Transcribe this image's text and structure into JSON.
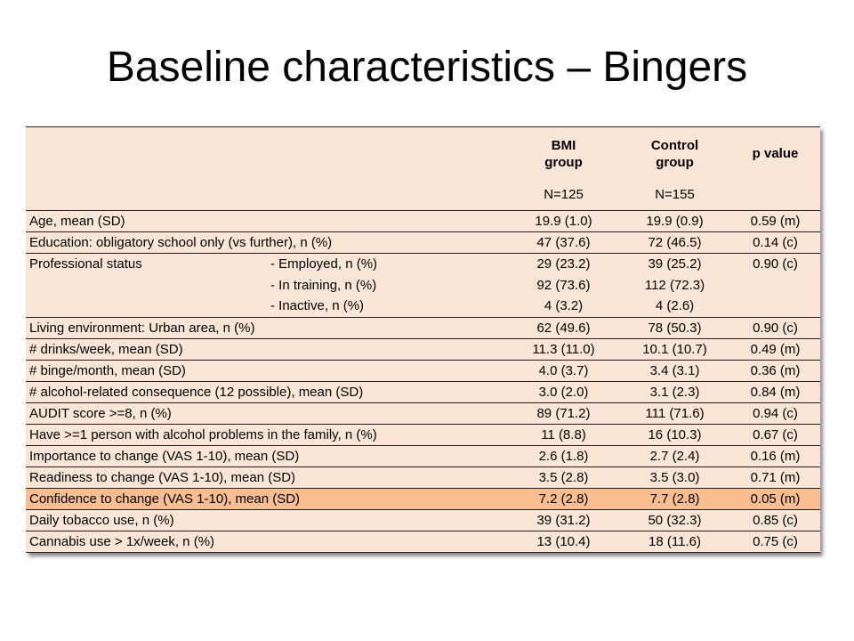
{
  "title": "Baseline characteristics – Bingers",
  "table": {
    "headers": {
      "bmi": "BMI\ngroup",
      "control": "Control\ngroup",
      "p": "p value",
      "bmi_n": "N=125",
      "control_n": "N=155"
    },
    "rows": [
      {
        "label": "Age, mean (SD)",
        "bmi": "19.9 (1.0)",
        "control": "19.9 (0.9)",
        "p": "0.59 (m)"
      },
      {
        "label": "Education: obligatory school only (vs further), n (%)",
        "bmi": "47 (37.6)",
        "control": "72 (46.5)",
        "p": "0.14 (c)"
      },
      {
        "label": "Professional status",
        "sub": "- Employed, n (%)",
        "bmi": "29 (23.2)",
        "control": "39 (25.2)",
        "p": "0.90 (c)"
      },
      {
        "label": "",
        "sub": "- In training, n (%)",
        "bmi": "92 (73.6)",
        "control": "112 (72.3)",
        "p": ""
      },
      {
        "label": "",
        "sub": "- Inactive, n (%)",
        "bmi": "4 (3.2)",
        "control": "4 (2.6)",
        "p": ""
      },
      {
        "label": "Living environment: Urban area, n (%)",
        "bmi": "62 (49.6)",
        "control": "78 (50.3)",
        "p": "0.90 (c)"
      },
      {
        "label": "# drinks/week, mean (SD)",
        "bmi": "11.3 (11.0)",
        "control": "10.1 (10.7)",
        "p": "0.49 (m)"
      },
      {
        "label": "# binge/month, mean (SD)",
        "bmi": "4.0 (3.7)",
        "control": "3.4 (3.1)",
        "p": "0.36 (m)"
      },
      {
        "label": "# alcohol-related consequence (12 possible), mean (SD)",
        "bmi": "3.0 (2.0)",
        "control": "3.1 (2.3)",
        "p": "0.84 (m)"
      },
      {
        "label": "AUDIT score >=8, n (%)",
        "bmi": "89 (71.2)",
        "control": "111 (71.6)",
        "p": "0.94 (c)"
      },
      {
        "label": "Have >=1 person with alcohol problems in the family, n (%)",
        "bmi": "11 (8.8)",
        "control": "16 (10.3)",
        "p": "0.67 (c)"
      },
      {
        "label": "Importance to change (VAS 1-10), mean (SD)",
        "bmi": "2.6 (1.8)",
        "control": "2.7 (2.4)",
        "p": "0.16 (m)"
      },
      {
        "label": "Readiness to change (VAS 1-10), mean (SD)",
        "bmi": "3.5 (2.8)",
        "control": "3.5 (3.0)",
        "p": "0.71 (m)"
      },
      {
        "label": "Confidence to change (VAS 1-10), mean (SD)",
        "bmi": "7.2 (2.8)",
        "control": "7.7 (2.8)",
        "p": "0.05 (m)",
        "highlight": true
      },
      {
        "label": "Daily tobacco use, n (%)",
        "bmi": "39 (31.2)",
        "control": "50 (32.3)",
        "p": "0.85 (c)"
      },
      {
        "label": "Cannabis use > 1x/week, n (%)",
        "bmi": "13 (10.4)",
        "control": "18 (11.6)",
        "p": "0.75 (c)"
      }
    ]
  }
}
